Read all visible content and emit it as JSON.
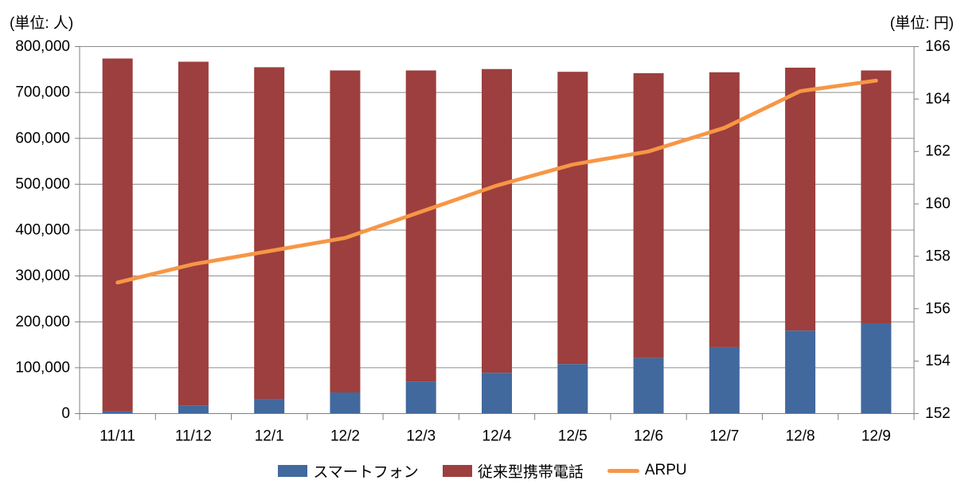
{
  "chart_data": {
    "type": "combo",
    "bar_mode": "stacked",
    "title": "",
    "categories": [
      "11/11",
      "11/12",
      "12/1",
      "12/2",
      "12/3",
      "12/4",
      "12/5",
      "12/6",
      "12/7",
      "12/8",
      "12/9"
    ],
    "series": [
      {
        "name": "スマートフォン",
        "type": "bar",
        "axis": "left",
        "color": "#41699E",
        "values": [
          5000,
          18000,
          32000,
          46000,
          70000,
          89000,
          108000,
          121000,
          145000,
          181000,
          197000
        ]
      },
      {
        "name": "従来型携帯電話",
        "type": "bar",
        "axis": "left",
        "color": "#9C3F3E",
        "values": [
          769000,
          749000,
          723000,
          702000,
          678000,
          662000,
          637000,
          621000,
          599000,
          573000,
          551000
        ]
      },
      {
        "name": "ARPU",
        "type": "line",
        "axis": "right",
        "color": "#F79646",
        "values": [
          157.0,
          157.7,
          158.2,
          158.7,
          159.7,
          160.7,
          161.5,
          162.0,
          162.9,
          164.3,
          164.7
        ]
      }
    ],
    "left_axis": {
      "unit_label": "(単位: 人)",
      "min": 0,
      "max": 800000,
      "step": 100000,
      "tick_labels": [
        "0",
        "100,000",
        "200,000",
        "300,000",
        "400,000",
        "500,000",
        "600,000",
        "700,000",
        "800,000"
      ]
    },
    "right_axis": {
      "unit_label": "(単位: 円)",
      "min": 152,
      "max": 166,
      "step": 2,
      "tick_labels": [
        "152",
        "154",
        "156",
        "158",
        "160",
        "162",
        "164",
        "166"
      ]
    },
    "legend": {
      "position": "bottom",
      "items": [
        "スマートフォン",
        "従来型携帯電話",
        "ARPU"
      ]
    },
    "grid": true,
    "colors": {
      "gridline": "#8C8C8C",
      "axis_line": "#7F7F7F",
      "text": "#000000",
      "background": "#FFFFFF"
    }
  }
}
